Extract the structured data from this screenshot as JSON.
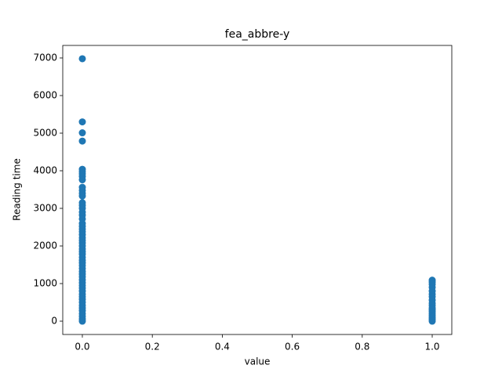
{
  "chart_data": {
    "type": "scatter",
    "title": "fea_abbre-y",
    "x_label": "value",
    "y_label": "Reading time",
    "series": [
      {
        "color": "#1f77b4",
        "x": [
          0,
          0,
          0,
          0,
          0,
          0,
          0,
          0,
          0,
          0,
          0,
          0,
          0,
          0,
          0,
          0,
          0,
          0,
          0,
          0,
          0,
          0,
          0,
          0,
          0,
          0,
          0,
          0,
          0,
          0,
          0,
          0,
          0,
          0,
          0,
          0,
          0,
          0,
          0,
          0,
          0,
          0,
          0,
          0,
          0,
          0,
          0,
          0,
          0,
          0,
          0,
          0,
          0,
          0,
          0,
          1,
          1,
          1,
          1,
          1,
          1,
          1,
          1,
          1,
          1,
          1,
          1,
          1,
          1,
          1,
          1,
          1,
          1
        ],
        "values": [
          6980,
          5300,
          5010,
          4790,
          4040,
          3980,
          3920,
          3850,
          3760,
          3560,
          3480,
          3400,
          3330,
          3150,
          3080,
          3000,
          2900,
          2820,
          2720,
          2600,
          2520,
          2450,
          2380,
          2300,
          2220,
          2150,
          2080,
          2000,
          1920,
          1850,
          1780,
          1700,
          1620,
          1550,
          1480,
          1400,
          1320,
          1250,
          1180,
          1100,
          1020,
          950,
          880,
          800,
          720,
          650,
          580,
          500,
          420,
          350,
          280,
          200,
          130,
          60,
          0,
          1090,
          1040,
          980,
          900,
          800,
          720,
          650,
          560,
          480,
          420,
          350,
          300,
          250,
          200,
          150,
          100,
          50,
          0
        ]
      }
    ],
    "xlim": [
      -0.056,
      1.056
    ],
    "xticks": [
      {
        "value": 0,
        "label": "0.0"
      },
      {
        "value": 0.2,
        "label": "0.2"
      },
      {
        "value": 0.4,
        "label": "0.4"
      },
      {
        "value": 0.6,
        "label": "0.6"
      },
      {
        "value": 0.8,
        "label": "0.8"
      },
      {
        "value": 1,
        "label": "1.0"
      }
    ],
    "ylim": [
      -354,
      7333
    ],
    "yticks": [
      0,
      1000,
      2000,
      3000,
      4000,
      5000,
      6000,
      7000
    ]
  }
}
